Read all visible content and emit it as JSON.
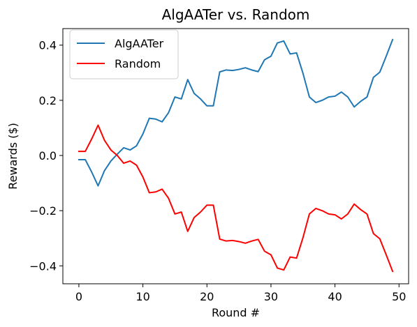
{
  "chart_data": {
    "type": "line",
    "title": "AlgAATer vs. Random",
    "xlabel": "Round #",
    "ylabel": "Rewards ($)",
    "xlim": [
      -2.5,
      51.5
    ],
    "ylim": [
      -0.465,
      0.46
    ],
    "xticks": [
      0,
      10,
      20,
      30,
      40,
      50
    ],
    "xtick_labels": [
      "0",
      "10",
      "20",
      "30",
      "40",
      "50"
    ],
    "yticks": [
      -0.4,
      -0.2,
      0.0,
      0.2,
      0.4
    ],
    "ytick_labels": [
      "−0.4",
      "−0.2",
      "0.0",
      "0.2",
      "0.4"
    ],
    "grid": false,
    "legend_position": "upper-left",
    "x": [
      0,
      1,
      2,
      3,
      4,
      5,
      6,
      7,
      8,
      9,
      10,
      11,
      12,
      13,
      14,
      15,
      16,
      17,
      18,
      19,
      20,
      21,
      22,
      23,
      24,
      25,
      26,
      27,
      28,
      29,
      30,
      31,
      32,
      33,
      34,
      35,
      36,
      37,
      38,
      39,
      40,
      41,
      42,
      43,
      44,
      45,
      46,
      47,
      48,
      49
    ],
    "series": [
      {
        "name": "AlgAATer",
        "color": "#1f77b4",
        "values": [
          -0.015,
          -0.015,
          -0.06,
          -0.11,
          -0.055,
          -0.02,
          0.005,
          0.028,
          0.02,
          0.035,
          0.078,
          0.135,
          0.132,
          0.122,
          0.155,
          0.212,
          0.205,
          0.275,
          0.225,
          0.205,
          0.18,
          0.18,
          0.303,
          0.31,
          0.308,
          0.312,
          0.318,
          0.31,
          0.304,
          0.347,
          0.36,
          0.408,
          0.415,
          0.368,
          0.372,
          0.298,
          0.212,
          0.192,
          0.2,
          0.212,
          0.215,
          0.23,
          0.212,
          0.176,
          0.196,
          0.212,
          0.283,
          0.302,
          0.36,
          0.42
        ]
      },
      {
        "name": "Random",
        "color": "#ff0000",
        "values": [
          0.015,
          0.015,
          0.06,
          0.11,
          0.055,
          0.02,
          0.0,
          -0.028,
          -0.02,
          -0.035,
          -0.078,
          -0.135,
          -0.132,
          -0.122,
          -0.155,
          -0.212,
          -0.205,
          -0.275,
          -0.225,
          -0.205,
          -0.18,
          -0.18,
          -0.303,
          -0.31,
          -0.308,
          -0.312,
          -0.318,
          -0.31,
          -0.304,
          -0.347,
          -0.36,
          -0.408,
          -0.415,
          -0.368,
          -0.372,
          -0.298,
          -0.212,
          -0.192,
          -0.2,
          -0.212,
          -0.215,
          -0.23,
          -0.212,
          -0.176,
          -0.196,
          -0.212,
          -0.283,
          -0.302,
          -0.36,
          -0.42
        ]
      }
    ]
  }
}
